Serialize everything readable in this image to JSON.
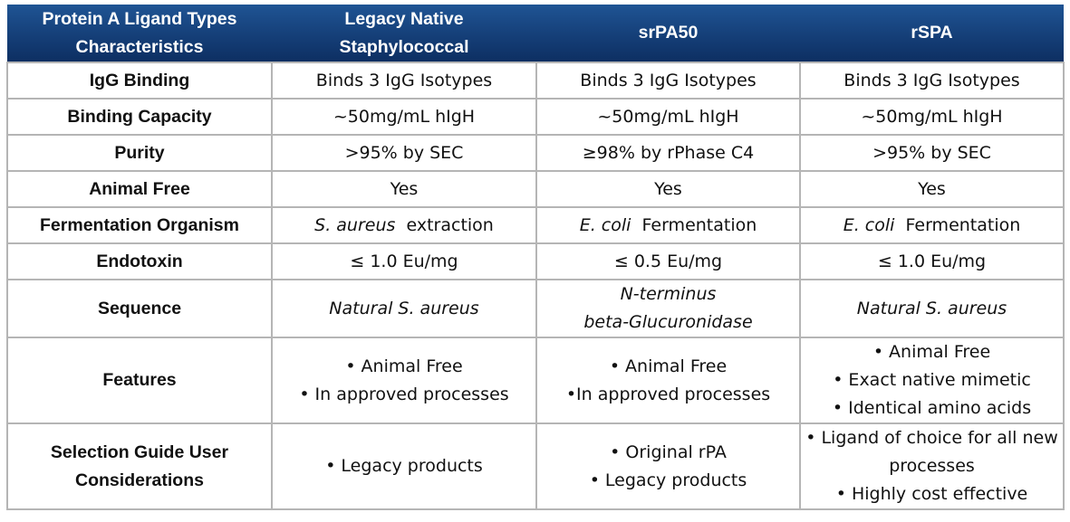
{
  "header": [
    "Protein A Ligand Types\nCharacteristics",
    "Legacy Native\nStaphylococcal",
    "srPA50",
    "rSPA"
  ],
  "rows": [
    {
      "label": "IgG Binding",
      "cells": [
        "Binds 3 IgG Isotypes",
        "Binds 3 IgG Isotypes",
        "Binds 3 IgG Isotypes"
      ]
    },
    {
      "label": "Binding Capacity",
      "cells": [
        "~50mg/mL hIgH",
        "~50mg/mL hIgH",
        "~50mg/mL hIgH"
      ]
    },
    {
      "label": "Purity",
      "cells": [
        ">95% by SEC",
        "≥98% by rPhase C4",
        ">95% by SEC"
      ]
    },
    {
      "label": "Animal Free",
      "cells": [
        "Yes",
        "Yes",
        "Yes"
      ]
    },
    {
      "label": "Fermentation Organism",
      "cells": [
        {
          "italic": "S. aureus",
          "text": " extraction"
        },
        {
          "italic": "E. coli",
          "text": " Fermentation"
        },
        {
          "italic": "E. coli",
          "text": " Fermentation"
        }
      ]
    },
    {
      "label": "Endotoxin",
      "cells": [
        "≤ 1.0 Eu/mg",
        "≤ 0.5 Eu/mg",
        "≤ 1.0 Eu/mg"
      ]
    },
    {
      "label": "Sequence",
      "cells": [
        "Natural S. aureus",
        "N-terminus\nbeta-Glucuronidase",
        "Natural S. aureus"
      ]
    },
    {
      "label": "Features",
      "cells": [
        [
          "• Animal Free",
          "• In approved processes"
        ],
        [
          "• Animal Free",
          "•In approved processes"
        ],
        [
          "• Animal Free",
          "• Exact native mimetic",
          "• Identical amino acids"
        ]
      ]
    },
    {
      "label": "Selection Guide User\nConsiderations",
      "cells": [
        [
          "• Legacy products"
        ],
        [
          "• Original rPA",
          "• Legacy products"
        ],
        [
          "• Ligand of choice for all new",
          "processes",
          "• Highly cost effective"
        ]
      ]
    }
  ]
}
